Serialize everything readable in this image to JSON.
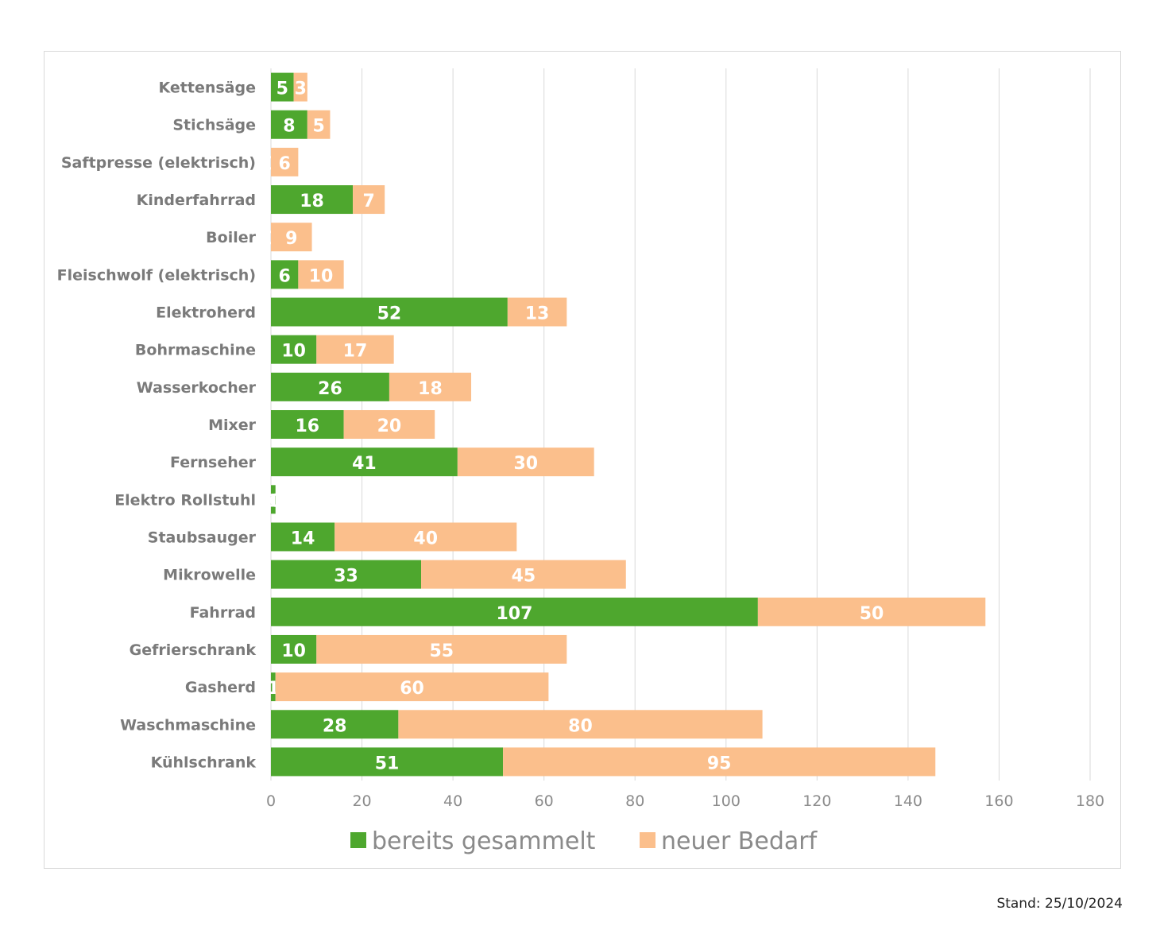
{
  "chart_data": {
    "type": "bar",
    "orientation": "horizontal",
    "stacked": true,
    "categories": [
      "Kettensäge",
      "Stichsäge",
      "Saftpresse (elektrisch)",
      "Kinderfahrrad",
      "Boiler",
      "Fleischwolf (elektrisch)",
      "Elektroherd",
      "Bohrmaschine",
      "Wasserkocher",
      "Mixer",
      "Fernseher",
      "Elektro Rollstuhl",
      "Staubsauger",
      "Mikrowelle",
      "Fahrrad",
      "Gefrierschrank",
      "Gasherd",
      "Waschmaschine",
      "Kühlschrank"
    ],
    "series": [
      {
        "name": "bereits gesammelt",
        "color": "#4ea72e",
        "values": [
          5,
          8,
          0,
          18,
          0,
          6,
          52,
          10,
          26,
          16,
          41,
          1,
          14,
          33,
          107,
          10,
          1,
          28,
          51
        ]
      },
      {
        "name": "neuer Bedarf",
        "color": "#fbbf8c",
        "values": [
          3,
          5,
          6,
          7,
          9,
          10,
          13,
          17,
          18,
          20,
          30,
          0,
          40,
          45,
          50,
          55,
          60,
          80,
          95
        ]
      }
    ],
    "xlim": [
      0,
      180
    ],
    "xticks": [
      "0",
      "20",
      "40",
      "60",
      "80",
      "100",
      "120",
      "140",
      "160",
      "180"
    ],
    "grid": true,
    "legend_position": "bottom"
  },
  "footer": {
    "note": "Stand: 25/10/2024"
  }
}
